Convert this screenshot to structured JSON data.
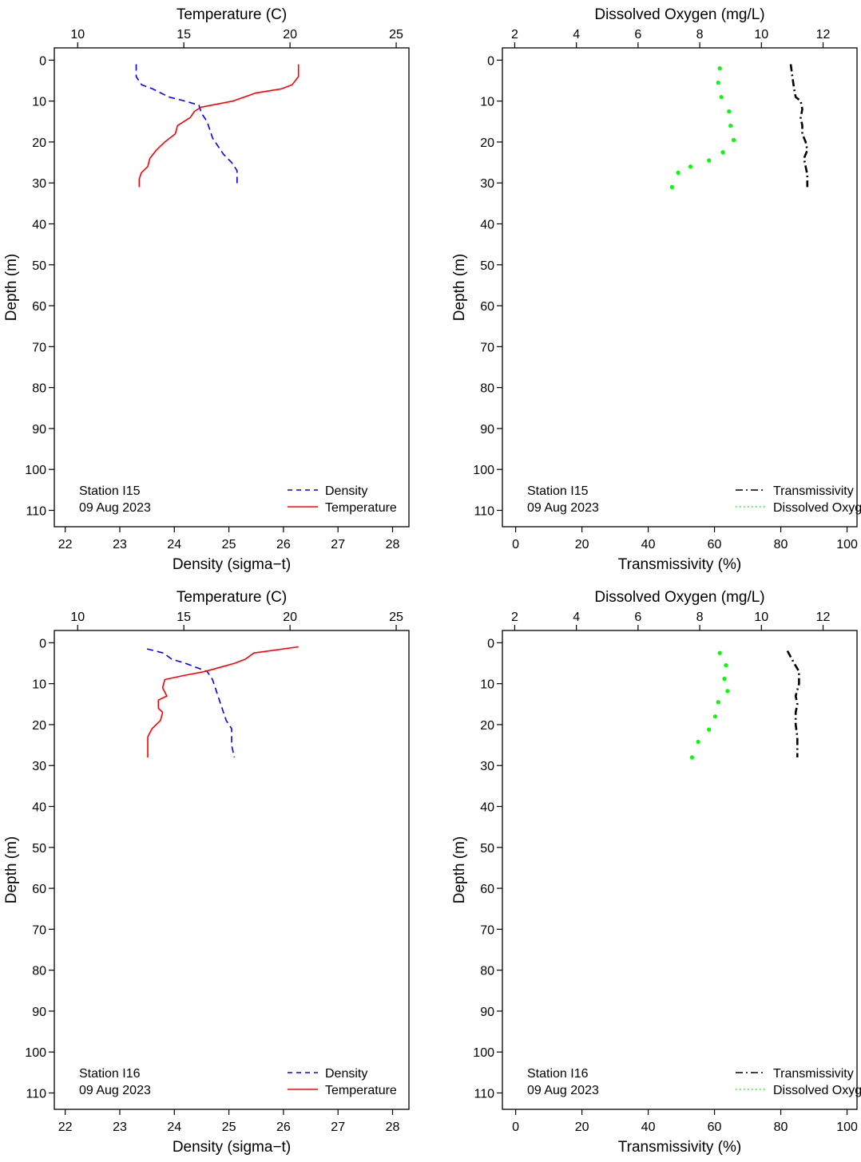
{
  "chart_data": [
    {
      "type": "line",
      "panel": "station-I15-density-temperature",
      "top_axis": {
        "label": "Temperature (C)",
        "range": [
          8.9,
          25.6
        ],
        "ticks": [
          10,
          15,
          20,
          25
        ]
      },
      "bottom_axis": {
        "label": "Density (sigma−t)",
        "range": [
          21.8,
          28.3
        ],
        "ticks": [
          22,
          23,
          24,
          25,
          26,
          27,
          28
        ]
      },
      "y_axis": {
        "label": "Depth (m)",
        "range": [
          -3,
          114
        ],
        "reversed": true,
        "ticks": [
          0,
          10,
          20,
          30,
          40,
          50,
          60,
          70,
          80,
          90,
          100,
          110
        ]
      },
      "annotation": {
        "station": "Station I15",
        "date": "09 Aug 2023"
      },
      "legend": {
        "placement": "bottom-right",
        "entries": [
          "Density",
          "Temperature"
        ]
      },
      "series": [
        {
          "name": "Density",
          "axis": "bottom",
          "color": "#0000ff",
          "dash": "dashed",
          "points": [
            [
              23.3,
              1
            ],
            [
              23.3,
              4
            ],
            [
              23.4,
              6
            ],
            [
              23.6,
              7
            ],
            [
              23.9,
              9
            ],
            [
              24.2,
              10
            ],
            [
              24.45,
              11
            ],
            [
              24.5,
              13
            ],
            [
              24.6,
              15
            ],
            [
              24.65,
              17
            ],
            [
              24.7,
              19
            ],
            [
              24.8,
              21
            ],
            [
              24.9,
              23
            ],
            [
              25.05,
              25
            ],
            [
              25.15,
              27
            ],
            [
              25.15,
              29
            ],
            [
              25.15,
              31
            ]
          ]
        },
        {
          "name": "Temperature",
          "axis": "top",
          "color": "#ff0000",
          "dash": "solid",
          "points": [
            [
              20.4,
              1
            ],
            [
              20.4,
              4
            ],
            [
              20.1,
              6
            ],
            [
              19.6,
              7
            ],
            [
              18.4,
              8
            ],
            [
              17.3,
              10
            ],
            [
              16.3,
              11
            ],
            [
              15.8,
              11.5
            ],
            [
              15.5,
              12.5
            ],
            [
              15.3,
              14
            ],
            [
              14.7,
              16
            ],
            [
              14.6,
              18
            ],
            [
              14.1,
              20
            ],
            [
              13.7,
              22
            ],
            [
              13.4,
              24
            ],
            [
              13.3,
              26
            ],
            [
              13.0,
              27.5
            ],
            [
              12.9,
              29
            ],
            [
              12.9,
              31
            ]
          ]
        }
      ]
    },
    {
      "type": "line",
      "panel": "station-I15-oxygen-transmissivity",
      "top_axis": {
        "label": "Dissolved Oxygen (mg/L)",
        "range": [
          1.6,
          13.1
        ],
        "ticks": [
          2,
          4,
          6,
          8,
          10,
          12
        ]
      },
      "bottom_axis": {
        "label": "Transmissivity (%)",
        "range": [
          -4,
          103
        ],
        "ticks": [
          0,
          20,
          40,
          60,
          80,
          100
        ]
      },
      "y_axis": {
        "label": "Depth (m)",
        "range": [
          -3,
          114
        ],
        "reversed": true,
        "ticks": [
          0,
          10,
          20,
          30,
          40,
          50,
          60,
          70,
          80,
          90,
          100,
          110
        ]
      },
      "annotation": {
        "station": "Station I15",
        "date": "09 Aug 2023"
      },
      "legend": {
        "placement": "bottom-right",
        "entries": [
          "Transmissivity",
          "Dissolved Oxygen"
        ]
      },
      "series": [
        {
          "name": "Transmissivity",
          "axis": "bottom",
          "color": "#000000",
          "dash": "dashdot",
          "points": [
            [
              83,
              1
            ],
            [
              83.5,
              4
            ],
            [
              84,
              7
            ],
            [
              84.5,
              9
            ],
            [
              86,
              10
            ],
            [
              86.5,
              12
            ],
            [
              86,
              14
            ],
            [
              86.5,
              16
            ],
            [
              86.5,
              18
            ],
            [
              87.5,
              20
            ],
            [
              88,
              22
            ],
            [
              87,
              24
            ],
            [
              87.5,
              26
            ],
            [
              88,
              28
            ],
            [
              88,
              31
            ]
          ]
        },
        {
          "name": "Dissolved Oxygen",
          "axis": "top",
          "color": "#00ff00",
          "dash": "dotted",
          "points": [
            [
              8.65,
              2
            ],
            [
              8.6,
              5.5
            ],
            [
              8.7,
              9
            ],
            [
              8.95,
              12.5
            ],
            [
              9.0,
              16
            ],
            [
              9.1,
              19.5
            ],
            [
              8.75,
              22.5
            ],
            [
              8.3,
              24.5
            ],
            [
              7.7,
              26
            ],
            [
              7.3,
              27.5
            ],
            [
              7.1,
              31
            ]
          ]
        }
      ]
    },
    {
      "type": "line",
      "panel": "station-I16-density-temperature",
      "top_axis": {
        "label": "Temperature (C)",
        "range": [
          8.9,
          25.6
        ],
        "ticks": [
          10,
          15,
          20,
          25
        ]
      },
      "bottom_axis": {
        "label": "Density (sigma−t)",
        "range": [
          21.8,
          28.3
        ],
        "ticks": [
          22,
          23,
          24,
          25,
          26,
          27,
          28
        ]
      },
      "y_axis": {
        "label": "Depth (m)",
        "range": [
          -3,
          114
        ],
        "reversed": true,
        "ticks": [
          0,
          10,
          20,
          30,
          40,
          50,
          60,
          70,
          80,
          90,
          100,
          110
        ]
      },
      "annotation": {
        "station": "Station I16",
        "date": "09 Aug 2023"
      },
      "legend": {
        "placement": "bottom-right",
        "entries": [
          "Density",
          "Temperature"
        ]
      },
      "series": [
        {
          "name": "Density",
          "axis": "bottom",
          "color": "#0000ff",
          "dash": "dashed",
          "points": [
            [
              23.5,
              1.5
            ],
            [
              23.8,
              2.5
            ],
            [
              23.95,
              4
            ],
            [
              24.2,
              5
            ],
            [
              24.4,
              6
            ],
            [
              24.6,
              7
            ],
            [
              24.7,
              9
            ],
            [
              24.75,
              11
            ],
            [
              24.8,
              13
            ],
            [
              24.85,
              15
            ],
            [
              24.9,
              17
            ],
            [
              24.95,
              19
            ],
            [
              25.05,
              21
            ],
            [
              25.05,
              23
            ],
            [
              25.05,
              25
            ],
            [
              25.1,
              28
            ]
          ]
        },
        {
          "name": "Temperature",
          "axis": "top",
          "color": "#ff0000",
          "dash": "solid",
          "points": [
            [
              20.4,
              1
            ],
            [
              18.3,
              2.5
            ],
            [
              17.9,
              4
            ],
            [
              17.4,
              5
            ],
            [
              16.7,
              6
            ],
            [
              16.0,
              7
            ],
            [
              15.0,
              8
            ],
            [
              14.1,
              9
            ],
            [
              14.0,
              11
            ],
            [
              14.2,
              13
            ],
            [
              13.8,
              14
            ],
            [
              13.8,
              16
            ],
            [
              14.0,
              17
            ],
            [
              13.9,
              19
            ],
            [
              13.5,
              21
            ],
            [
              13.3,
              23
            ],
            [
              13.3,
              25
            ],
            [
              13.3,
              28
            ]
          ]
        }
      ]
    },
    {
      "type": "line",
      "panel": "station-I16-oxygen-transmissivity",
      "top_axis": {
        "label": "Dissolved Oxygen (mg/L)",
        "range": [
          1.6,
          13.1
        ],
        "ticks": [
          2,
          4,
          6,
          8,
          10,
          12
        ]
      },
      "bottom_axis": {
        "label": "Transmissivity (%)",
        "range": [
          -4,
          103
        ],
        "ticks": [
          0,
          20,
          40,
          60,
          80,
          100
        ]
      },
      "y_axis": {
        "label": "Depth (m)",
        "range": [
          -3,
          114
        ],
        "reversed": true,
        "ticks": [
          0,
          10,
          20,
          30,
          40,
          50,
          60,
          70,
          80,
          90,
          100,
          110
        ]
      },
      "annotation": {
        "station": "Station I16",
        "date": "09 Aug 2023"
      },
      "legend": {
        "placement": "bottom-right",
        "entries": [
          "Transmissivity",
          "Dissolved Oxygen"
        ]
      },
      "series": [
        {
          "name": "Transmissivity",
          "axis": "bottom",
          "color": "#000000",
          "dash": "dashdot",
          "points": [
            [
              82,
              2
            ],
            [
              84,
              5
            ],
            [
              85.5,
              7
            ],
            [
              85.5,
              10
            ],
            [
              84.5,
              13
            ],
            [
              85,
              15
            ],
            [
              84.5,
              17
            ],
            [
              84.5,
              20
            ],
            [
              85,
              23
            ],
            [
              85,
              25
            ],
            [
              85,
              28
            ]
          ]
        },
        {
          "name": "Dissolved Oxygen",
          "axis": "top",
          "color": "#00ff00",
          "dash": "dotted",
          "points": [
            [
              8.65,
              2.5
            ],
            [
              8.85,
              5.5
            ],
            [
              8.8,
              8.8
            ],
            [
              8.9,
              11.8
            ],
            [
              8.6,
              14.5
            ],
            [
              8.5,
              18
            ],
            [
              8.3,
              21.2
            ],
            [
              7.95,
              24.2
            ],
            [
              7.75,
              28
            ]
          ]
        }
      ]
    }
  ]
}
